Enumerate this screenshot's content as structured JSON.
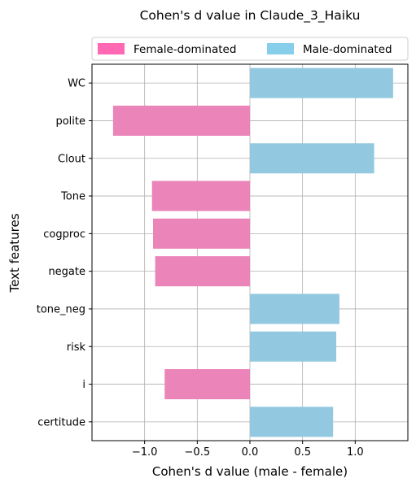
{
  "chart_data": {
    "type": "bar",
    "orientation": "horizontal",
    "title": "Cohen's d value in Claude_3_Haiku",
    "xlabel": "Cohen's d value (male - female)",
    "ylabel": "Text features",
    "categories": [
      "WC",
      "polite",
      "Clout",
      "Tone",
      "cogproc",
      "negate",
      "tone_neg",
      "risk",
      "i",
      "certitude"
    ],
    "values": [
      1.36,
      -1.3,
      1.18,
      -0.93,
      -0.92,
      -0.9,
      0.85,
      0.82,
      -0.81,
      0.79
    ],
    "xlim": [
      -1.5,
      1.5
    ],
    "xticks": [
      -1.0,
      -0.5,
      0.0,
      0.5,
      1.0
    ],
    "xtick_labels": [
      "−1.0",
      "−0.5",
      "0.0",
      "0.5",
      "1.0"
    ],
    "grid": true,
    "legend_position": "top",
    "legend": [
      {
        "label": "Female-dominated",
        "color": "#ff69b4"
      },
      {
        "label": "Male-dominated",
        "color": "#87ceeb"
      }
    ],
    "bar_colors": {
      "negative": "#eb84b8",
      "positive": "#93c9e0"
    }
  }
}
